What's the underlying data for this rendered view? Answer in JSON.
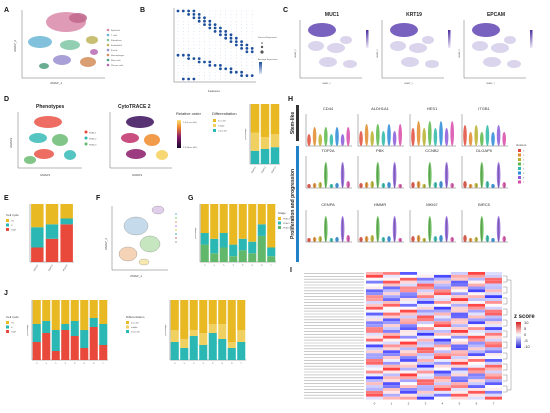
{
  "panels": {
    "A": "A",
    "B": "B",
    "C": "C",
    "D": "D",
    "E": "E",
    "F": "F",
    "G": "G",
    "H": "H",
    "I": "I",
    "J": "J"
  },
  "panel_a": {
    "xlabel": "UMAP_1",
    "ylabel": "UMAP_2",
    "legend": [
      "Epithelial",
      "T cells",
      "Fibroblasts",
      "Endothelial",
      "B cells",
      "Macrophages",
      "Mast cells",
      "Plasma cells"
    ],
    "colors": [
      "#d98aa9",
      "#6bb6d6",
      "#7fc5a3",
      "#c0b45a",
      "#9a8fd0",
      "#d48d5a",
      "#4f9f7f",
      "#b76bb0"
    ]
  },
  "panel_b": {
    "xlabel": "Features",
    "legend_title": "Percent Expressed",
    "legend2_title": "Average Expression"
  },
  "panel_c": {
    "genes": [
      "MUC1",
      "KRT19",
      "EPCAM"
    ],
    "xlabel": "UMAP_1",
    "ylabel": "UMAP_2"
  },
  "panel_d": {
    "title1": "Phenotypes",
    "title2": "CytoTRACE 2",
    "xlabel": "UMAP1",
    "ylabel": "UMAP2",
    "phenotypes": [
      "PDAC1",
      "PDAC2",
      "PDAC3"
    ],
    "relative_order": "Relative order",
    "scale_top": "1.0 (Less diff.)",
    "scale_bottom": "0.0 (More diff.)",
    "differentiation": "Differentiation",
    "diff_levels": [
      "less diff",
      "middle",
      "more diff"
    ],
    "bar_ylabel": "percentage"
  },
  "panel_e": {
    "legend_title": "Cell cycle",
    "phases": [
      "G1",
      "S",
      "G2M"
    ],
    "categories": [
      "PDAC1",
      "PDAC2",
      "PDAC3"
    ]
  },
  "panel_f": {
    "xlabel": "UMAP_1",
    "ylabel": "UMAP_2"
  },
  "panel_g": {
    "legend_title": "Stage",
    "stages": [
      "PDAC1",
      "PDAC2",
      "PDAC3"
    ],
    "ylabel": "percentage"
  },
  "panel_h": {
    "group1": "Stem-like",
    "group2": "Proliferation and progression",
    "genes_row1": [
      "CD44",
      "ALDH1A1",
      "HES1",
      "ITGB1"
    ],
    "genes_row2": [
      "TOP2A",
      "PBK",
      "CCNB2",
      "DLGAP5"
    ],
    "genes_row3": [
      "CENPA",
      "HMMR",
      "MKI67",
      "BIRC5"
    ],
    "clusters_title": "clusters",
    "cluster_ids": [
      "0",
      "1",
      "2",
      "3",
      "4",
      "5",
      "6",
      "7"
    ]
  },
  "panel_i": {
    "legend_title": "z score",
    "ticks": [
      "10",
      "5",
      "0",
      "-5",
      "-10"
    ],
    "cols": [
      "0",
      "1",
      "2",
      "3",
      "4",
      "5",
      "6",
      "7"
    ]
  },
  "panel_j": {
    "legend1_title": "Cell cycle",
    "phases": [
      "G1",
      "S",
      "G2M"
    ],
    "legend2_title": "Differentiation",
    "diff_levels": [
      "less diff",
      "middle",
      "more diff"
    ],
    "ylabel": "percentage",
    "cols": [
      "0",
      "1",
      "2",
      "3",
      "4",
      "5",
      "6",
      "7"
    ]
  },
  "colors": {
    "cycle_g1": "#e8b923",
    "cycle_s": "#2bb7b3",
    "cycle_g2m": "#e8493b",
    "diff_less": "#e8b923",
    "diff_mid": "#f0d060",
    "diff_more": "#2bb7b3",
    "stage1": "#e8b923",
    "stage2": "#2bb7b3",
    "stage3": "#62b86a"
  },
  "chart_data": [
    {
      "type": "bar",
      "panel": "D",
      "categories": [
        "PDAC1",
        "PDAC2",
        "PDAC3"
      ],
      "series": [
        {
          "name": "more diff",
          "values": [
            0.22,
            0.25,
            0.28
          ]
        },
        {
          "name": "middle",
          "values": [
            0.3,
            0.2,
            0.22
          ]
        },
        {
          "name": "less diff",
          "values": [
            0.48,
            0.55,
            0.5
          ]
        }
      ],
      "ylim": [
        0,
        1
      ]
    },
    {
      "type": "bar",
      "panel": "E",
      "categories": [
        "PDAC1",
        "PDAC2",
        "PDAC3"
      ],
      "series": [
        {
          "name": "G2M",
          "values": [
            0.25,
            0.4,
            0.65
          ]
        },
        {
          "name": "S",
          "values": [
            0.35,
            0.25,
            0.1
          ]
        },
        {
          "name": "G1",
          "values": [
            0.4,
            0.35,
            0.25
          ]
        }
      ],
      "ylim": [
        0,
        1
      ]
    },
    {
      "type": "bar",
      "panel": "G",
      "categories": [
        "0",
        "1",
        "2",
        "3",
        "4",
        "5",
        "6",
        "7"
      ],
      "series": [
        {
          "name": "PDAC3",
          "values": [
            0.3,
            0.15,
            0.25,
            0.1,
            0.2,
            0.15,
            0.45,
            0.1
          ]
        },
        {
          "name": "PDAC2",
          "values": [
            0.2,
            0.25,
            0.25,
            0.2,
            0.2,
            0.2,
            0.2,
            0.15
          ]
        },
        {
          "name": "PDAC1",
          "values": [
            0.5,
            0.6,
            0.5,
            0.7,
            0.6,
            0.65,
            0.35,
            0.75
          ]
        }
      ],
      "ylim": [
        0,
        1
      ]
    },
    {
      "type": "bar",
      "panel": "J-cycle",
      "categories": [
        "0",
        "1",
        "2",
        "3",
        "4",
        "5",
        "6",
        "7"
      ],
      "series": [
        {
          "name": "G2M",
          "values": [
            0.3,
            0.45,
            0.15,
            0.5,
            0.4,
            0.2,
            0.55,
            0.25
          ]
        },
        {
          "name": "S",
          "values": [
            0.3,
            0.2,
            0.35,
            0.1,
            0.25,
            0.3,
            0.15,
            0.35
          ]
        },
        {
          "name": "G1",
          "values": [
            0.4,
            0.35,
            0.5,
            0.4,
            0.35,
            0.5,
            0.3,
            0.4
          ]
        }
      ],
      "ylim": [
        0,
        1
      ]
    },
    {
      "type": "bar",
      "panel": "J-diff",
      "categories": [
        "0",
        "1",
        "2",
        "3",
        "4",
        "5",
        "6",
        "7"
      ],
      "series": [
        {
          "name": "more diff",
          "values": [
            0.3,
            0.2,
            0.4,
            0.25,
            0.45,
            0.35,
            0.2,
            0.3
          ]
        },
        {
          "name": "middle",
          "values": [
            0.2,
            0.15,
            0.1,
            0.2,
            0.15,
            0.25,
            0.1,
            0.2
          ]
        },
        {
          "name": "less diff",
          "values": [
            0.5,
            0.65,
            0.5,
            0.55,
            0.4,
            0.4,
            0.7,
            0.5
          ]
        }
      ],
      "ylim": [
        0,
        1
      ]
    }
  ]
}
